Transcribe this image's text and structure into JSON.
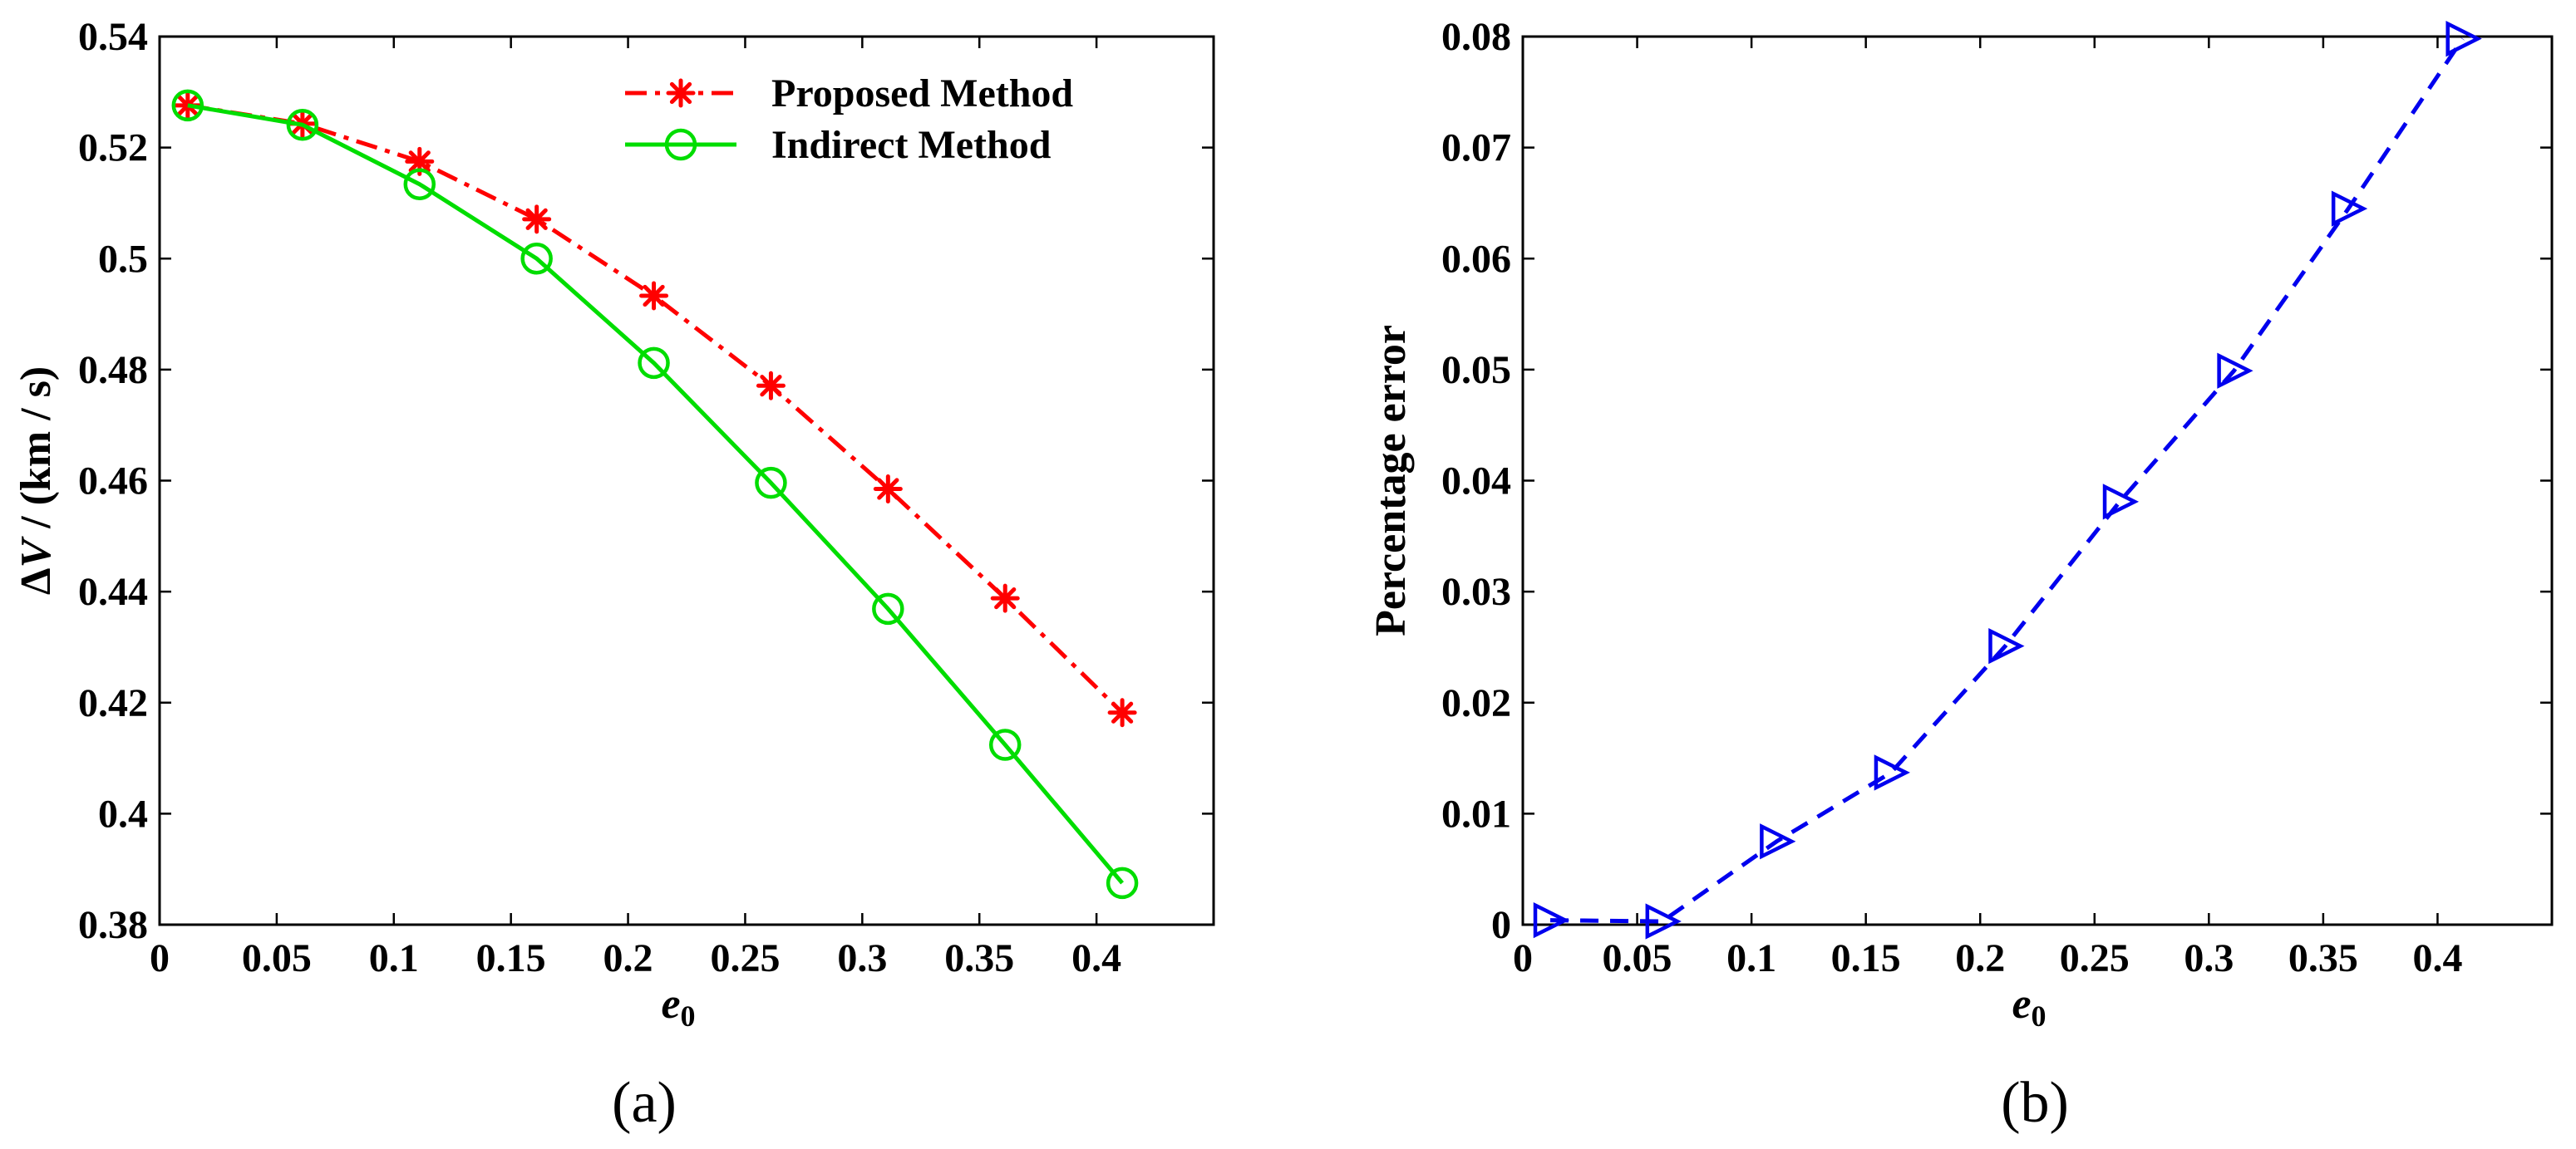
{
  "chart_data": [
    {
      "panel": "(a)",
      "type": "line",
      "xlabel": "e",
      "xlabel_sub": "0",
      "ylabel": "ΔV / (km / s)",
      "ylabel_parts": {
        "delta": "Δ",
        "var": "V",
        "unit": " / (km / s)"
      },
      "xlim": [
        0,
        0.45
      ],
      "ylim": [
        0.38,
        0.54
      ],
      "xticks": [
        0,
        0.05,
        0.1,
        0.15,
        0.2,
        0.25,
        0.3,
        0.35,
        0.4
      ],
      "xtick_labels": [
        "0",
        "0.05",
        "0.1",
        "0.15",
        "0.2",
        "0.25",
        "0.3",
        "0.35",
        "0.4"
      ],
      "yticks": [
        0.38,
        0.4,
        0.42,
        0.44,
        0.46,
        0.48,
        0.5,
        0.52,
        0.54
      ],
      "ytick_labels": [
        "0.38",
        "0.4",
        "0.42",
        "0.44",
        "0.46",
        "0.48",
        "0.5",
        "0.52",
        "0.54"
      ],
      "legend_position": "top-right",
      "series": [
        {
          "name": "Proposed Method",
          "color": "#ff0000",
          "line_style": "dash-dot",
          "marker": "asterisk",
          "x": [
            0.012,
            0.061,
            0.111,
            0.161,
            0.211,
            0.261,
            0.311,
            0.361,
            0.411
          ],
          "values": [
            0.5276,
            0.5243,
            0.5175,
            0.5071,
            0.4933,
            0.4771,
            0.4585,
            0.4388,
            0.4182
          ]
        },
        {
          "name": "Indirect Method",
          "color": "#00dd00",
          "line_style": "solid",
          "marker": "circle",
          "x": [
            0.012,
            0.061,
            0.111,
            0.161,
            0.211,
            0.261,
            0.311,
            0.361,
            0.411
          ],
          "values": [
            0.5276,
            0.5241,
            0.5134,
            0.5,
            0.4812,
            0.4596,
            0.4369,
            0.4124,
            0.3875
          ]
        }
      ]
    },
    {
      "panel": "(b)",
      "type": "line",
      "xlabel": "e",
      "xlabel_sub": "0",
      "ylabel": "Percentage error",
      "xlim": [
        0,
        0.45
      ],
      "ylim": [
        0,
        0.08
      ],
      "xticks": [
        0,
        0.05,
        0.1,
        0.15,
        0.2,
        0.25,
        0.3,
        0.35,
        0.4
      ],
      "xtick_labels": [
        "0",
        "0.05",
        "0.1",
        "0.15",
        "0.2",
        "0.25",
        "0.3",
        "0.35",
        "0.4"
      ],
      "yticks": [
        0,
        0.01,
        0.02,
        0.03,
        0.04,
        0.05,
        0.06,
        0.07,
        0.08
      ],
      "ytick_labels": [
        "0",
        "0.01",
        "0.02",
        "0.03",
        "0.04",
        "0.05",
        "0.06",
        "0.07",
        "0.08"
      ],
      "series": [
        {
          "name": "Percentage error",
          "color": "#0000ee",
          "line_style": "dashed",
          "marker": "triangle-right",
          "x": [
            0.012,
            0.061,
            0.111,
            0.161,
            0.211,
            0.261,
            0.311,
            0.361,
            0.411
          ],
          "values": [
            0.0004,
            0.0003,
            0.0075,
            0.0137,
            0.0251,
            0.0381,
            0.0499,
            0.0645,
            0.0798
          ]
        }
      ]
    }
  ],
  "captions": {
    "a": "(a)",
    "b": "(b)"
  }
}
